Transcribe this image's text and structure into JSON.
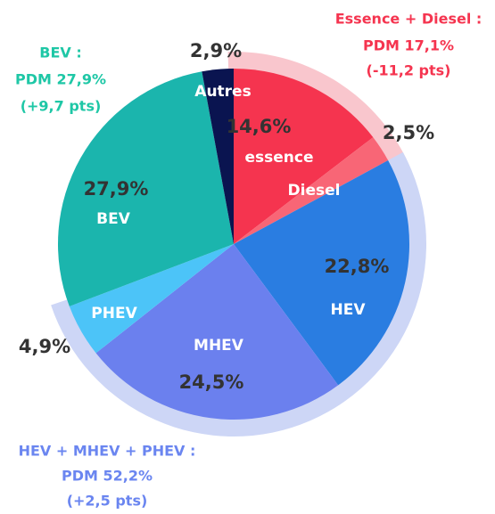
{
  "chart_data": {
    "type": "pie",
    "categories": [
      "essence",
      "Diesel",
      "HEV",
      "MHEV",
      "PHEV",
      "BEV",
      "Autres"
    ],
    "values": [
      14.6,
      2.5,
      22.8,
      24.5,
      4.9,
      27.9,
      2.9
    ],
    "value_labels": [
      "14,6%",
      "2,5%",
      "22,8%",
      "24,5%",
      "4,9%",
      "27,9%",
      "2,9%"
    ],
    "colors": [
      "#f5344f",
      "#f86676",
      "#2a7de1",
      "#6b80ee",
      "#4cc4f8",
      "#1bb5ad",
      "#0a1450"
    ],
    "annotations": [
      {
        "lines": [
          "Essence + Diesel :",
          "PDM 17,1%",
          "(-11,2 pts)"
        ],
        "color": "#f5344f"
      },
      {
        "lines": [
          "BEV :",
          "PDM 27,9%",
          "(+9,7 pts)"
        ],
        "color": "#1ec7a6"
      },
      {
        "lines": [
          "HEV + MHEV + PHEV :",
          "PDM 52,2%",
          "(+2,5 pts)"
        ],
        "color": "#6a85f0"
      }
    ]
  }
}
